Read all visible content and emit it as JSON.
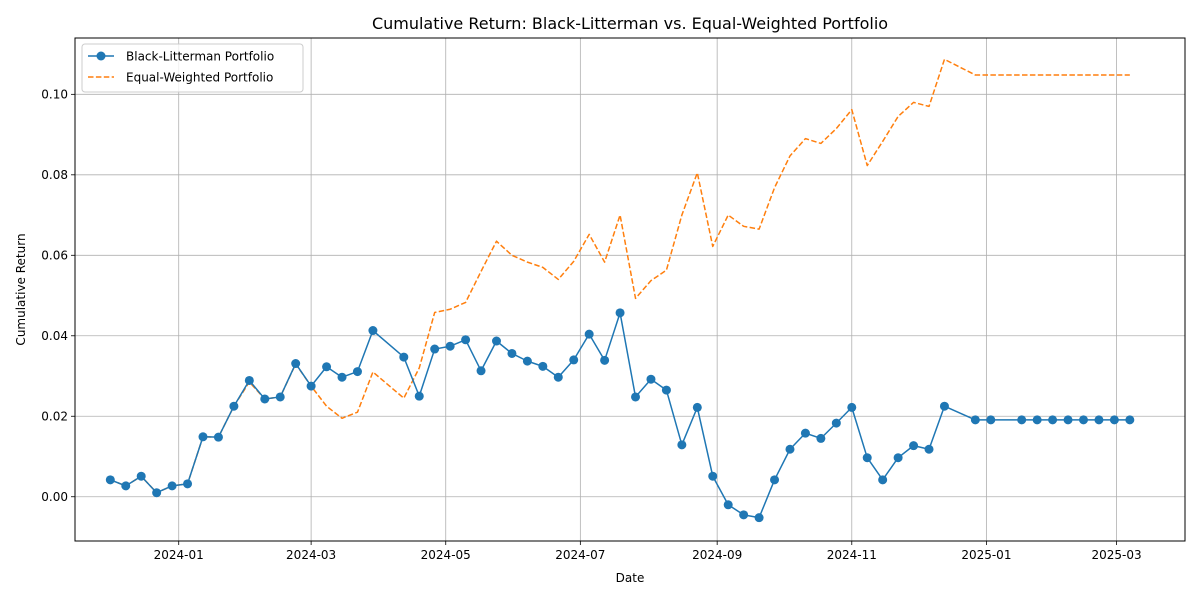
{
  "chart_data": {
    "type": "line",
    "title": "Cumulative Return: Black-Litterman vs. Equal-Weighted Portfolio",
    "xlabel": "Date",
    "ylabel": "Cumulative Return",
    "xlim": [
      "2023-11-15",
      "2025-04-01"
    ],
    "ylim": [
      -0.011,
      0.114
    ],
    "x_ticks": [
      "2024-01-01",
      "2024-03-01",
      "2024-05-01",
      "2024-07-01",
      "2024-09-01",
      "2024-11-01",
      "2025-01-01",
      "2025-03-01"
    ],
    "x_tick_labels": [
      "2024-01",
      "2024-03",
      "2024-05",
      "2024-07",
      "2024-09",
      "2024-11",
      "2025-01",
      "2025-03"
    ],
    "y_ticks": [
      0.0,
      0.02,
      0.04,
      0.06,
      0.08,
      0.1
    ],
    "y_tick_labels": [
      "0.00",
      "0.02",
      "0.04",
      "0.06",
      "0.08",
      "0.10"
    ],
    "grid": true,
    "legend_position": "upper-left",
    "series": [
      {
        "name": "Black-Litterman Portfolio",
        "color": "#1f77b4",
        "style": "solid-with-markers",
        "points": [
          [
            "2023-12-01",
            0.0042
          ],
          [
            "2023-12-08",
            0.0027
          ],
          [
            "2023-12-15",
            0.0051
          ],
          [
            "2023-12-22",
            0.001
          ],
          [
            "2023-12-29",
            0.0027
          ],
          [
            "2024-01-05",
            0.0032
          ],
          [
            "2024-01-12",
            0.0149
          ],
          [
            "2024-01-19",
            0.0148
          ],
          [
            "2024-01-26",
            0.0225
          ],
          [
            "2024-02-02",
            0.0289
          ],
          [
            "2024-02-09",
            0.0243
          ],
          [
            "2024-02-16",
            0.0248
          ],
          [
            "2024-02-23",
            0.0331
          ],
          [
            "2024-03-01",
            0.0275
          ],
          [
            "2024-03-08",
            0.0323
          ],
          [
            "2024-03-15",
            0.0297
          ],
          [
            "2024-03-22",
            0.0311
          ],
          [
            "2024-03-29",
            0.0413
          ],
          [
            "2024-04-12",
            0.0347
          ],
          [
            "2024-04-19",
            0.025
          ],
          [
            "2024-04-26",
            0.0367
          ],
          [
            "2024-05-03",
            0.0374
          ],
          [
            "2024-05-10",
            0.039
          ],
          [
            "2024-05-17",
            0.0313
          ],
          [
            "2024-05-24",
            0.0387
          ],
          [
            "2024-05-31",
            0.0356
          ],
          [
            "2024-06-07",
            0.0337
          ],
          [
            "2024-06-14",
            0.0324
          ],
          [
            "2024-06-21",
            0.0297
          ],
          [
            "2024-06-28",
            0.034
          ],
          [
            "2024-07-05",
            0.0404
          ],
          [
            "2024-07-12",
            0.0339
          ],
          [
            "2024-07-19",
            0.0457
          ],
          [
            "2024-07-26",
            0.0248
          ],
          [
            "2024-08-02",
            0.0292
          ],
          [
            "2024-08-09",
            0.0265
          ],
          [
            "2024-08-16",
            0.0129
          ],
          [
            "2024-08-23",
            0.0222
          ],
          [
            "2024-08-30",
            0.0051
          ],
          [
            "2024-09-06",
            -0.002
          ],
          [
            "2024-09-13",
            -0.0045
          ],
          [
            "2024-09-20",
            -0.0052
          ],
          [
            "2024-09-27",
            0.0042
          ],
          [
            "2024-10-04",
            0.0118
          ],
          [
            "2024-10-11",
            0.0158
          ],
          [
            "2024-10-18",
            0.0145
          ],
          [
            "2024-10-25",
            0.0183
          ],
          [
            "2024-11-01",
            0.0222
          ],
          [
            "2024-11-08",
            0.0097
          ],
          [
            "2024-11-15",
            0.0042
          ],
          [
            "2024-11-22",
            0.0097
          ],
          [
            "2024-11-29",
            0.0127
          ],
          [
            "2024-12-06",
            0.0118
          ],
          [
            "2024-12-13",
            0.0225
          ],
          [
            "2024-12-27",
            0.0191
          ],
          [
            "2025-01-03",
            0.0191
          ],
          [
            "2025-01-17",
            0.0191
          ],
          [
            "2025-01-24",
            0.0191
          ],
          [
            "2025-01-31",
            0.0191
          ],
          [
            "2025-02-07",
            0.0191
          ],
          [
            "2025-02-14",
            0.0191
          ],
          [
            "2025-02-21",
            0.0191
          ],
          [
            "2025-02-28",
            0.0191
          ],
          [
            "2025-03-07",
            0.0191
          ]
        ]
      },
      {
        "name": "Equal-Weighted Portfolio",
        "color": "#ff7f0e",
        "style": "dashed",
        "points": [
          [
            "2023-12-01",
            0.0042
          ],
          [
            "2023-12-08",
            0.0027
          ],
          [
            "2023-12-15",
            0.0051
          ],
          [
            "2023-12-22",
            0.001
          ],
          [
            "2023-12-29",
            0.0027
          ],
          [
            "2024-01-05",
            0.0032
          ],
          [
            "2024-01-12",
            0.0149
          ],
          [
            "2024-01-19",
            0.0148
          ],
          [
            "2024-01-26",
            0.0225
          ],
          [
            "2024-02-02",
            0.0285
          ],
          [
            "2024-02-09",
            0.0243
          ],
          [
            "2024-02-16",
            0.0248
          ],
          [
            "2024-02-23",
            0.033
          ],
          [
            "2024-03-01",
            0.0275
          ],
          [
            "2024-03-08",
            0.0225
          ],
          [
            "2024-03-15",
            0.0195
          ],
          [
            "2024-03-22",
            0.021
          ],
          [
            "2024-03-29",
            0.031
          ],
          [
            "2024-04-12",
            0.0245
          ],
          [
            "2024-04-19",
            0.032
          ],
          [
            "2024-04-26",
            0.0458
          ],
          [
            "2024-05-03",
            0.0466
          ],
          [
            "2024-05-10",
            0.0483
          ],
          [
            "2024-05-17",
            0.056
          ],
          [
            "2024-05-24",
            0.0635
          ],
          [
            "2024-05-31",
            0.06
          ],
          [
            "2024-06-07",
            0.0583
          ],
          [
            "2024-06-14",
            0.057
          ],
          [
            "2024-06-21",
            0.054
          ],
          [
            "2024-06-28",
            0.0585
          ],
          [
            "2024-07-05",
            0.0652
          ],
          [
            "2024-07-12",
            0.0583
          ],
          [
            "2024-07-19",
            0.07
          ],
          [
            "2024-07-26",
            0.0493
          ],
          [
            "2024-08-02",
            0.0537
          ],
          [
            "2024-08-09",
            0.0563
          ],
          [
            "2024-08-16",
            0.07
          ],
          [
            "2024-08-23",
            0.0805
          ],
          [
            "2024-08-30",
            0.0622
          ],
          [
            "2024-09-06",
            0.07
          ],
          [
            "2024-09-13",
            0.0672
          ],
          [
            "2024-09-20",
            0.0665
          ],
          [
            "2024-09-27",
            0.0768
          ],
          [
            "2024-10-04",
            0.0847
          ],
          [
            "2024-10-11",
            0.089
          ],
          [
            "2024-10-18",
            0.0878
          ],
          [
            "2024-10-25",
            0.0915
          ],
          [
            "2024-11-01",
            0.0962
          ],
          [
            "2024-11-08",
            0.0823
          ],
          [
            "2024-11-15",
            0.0883
          ],
          [
            "2024-11-22",
            0.0945
          ],
          [
            "2024-11-29",
            0.098
          ],
          [
            "2024-12-06",
            0.097
          ],
          [
            "2024-12-13",
            0.1087
          ],
          [
            "2024-12-27",
            0.1048
          ],
          [
            "2025-01-03",
            0.1048
          ],
          [
            "2025-01-17",
            0.1048
          ],
          [
            "2025-01-24",
            0.1048
          ],
          [
            "2025-01-31",
            0.1048
          ],
          [
            "2025-02-07",
            0.1048
          ],
          [
            "2025-02-14",
            0.1048
          ],
          [
            "2025-02-21",
            0.1048
          ],
          [
            "2025-02-28",
            0.1048
          ],
          [
            "2025-03-07",
            0.1048
          ]
        ]
      }
    ]
  }
}
